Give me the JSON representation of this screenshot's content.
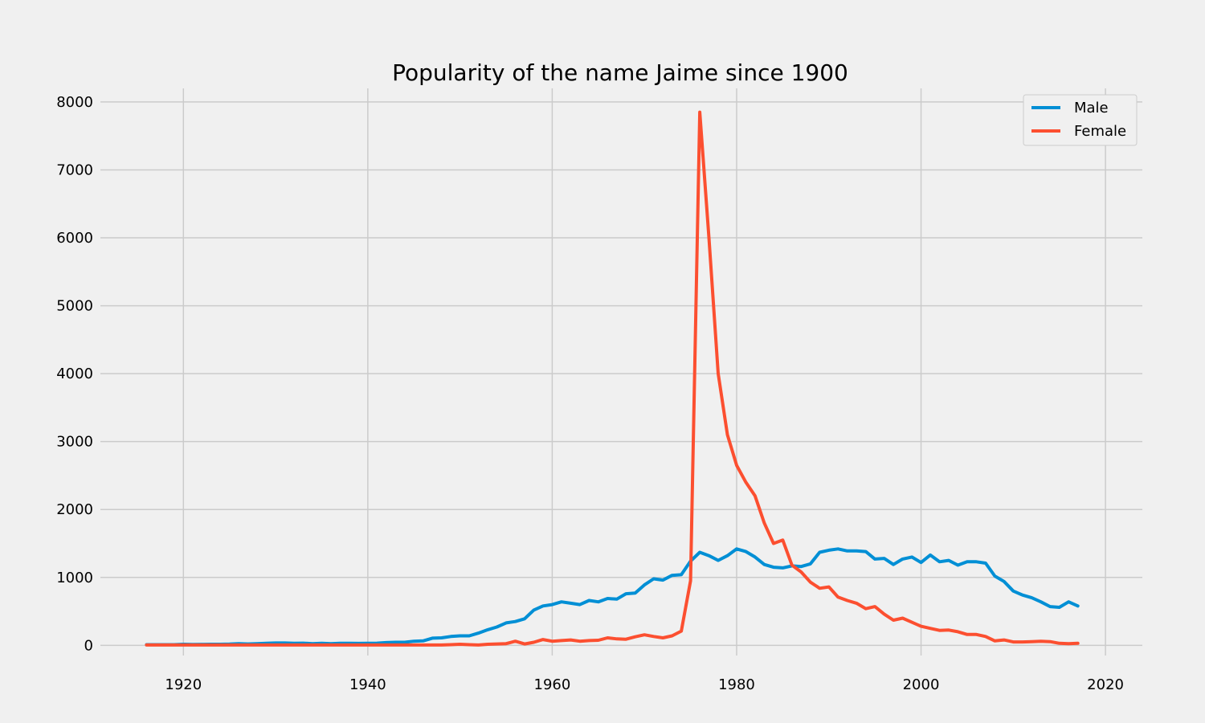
{
  "chart_data": {
    "type": "line",
    "title": "Popularity of the name Jaime since 1900",
    "xlabel": "",
    "ylabel": "",
    "xlim": [
      1911,
      2024
    ],
    "ylim": [
      -150,
      8200
    ],
    "xticks": [
      1920,
      1940,
      1960,
      1980,
      2000,
      2020
    ],
    "yticks": [
      0,
      1000,
      2000,
      3000,
      4000,
      5000,
      6000,
      7000,
      8000
    ],
    "grid": true,
    "legend_position": "top-right",
    "x": [
      1916,
      1917,
      1918,
      1919,
      1920,
      1921,
      1922,
      1923,
      1924,
      1925,
      1926,
      1927,
      1928,
      1929,
      1930,
      1931,
      1932,
      1933,
      1934,
      1935,
      1936,
      1937,
      1938,
      1939,
      1940,
      1941,
      1942,
      1943,
      1944,
      1945,
      1946,
      1947,
      1948,
      1949,
      1950,
      1951,
      1952,
      1953,
      1954,
      1955,
      1956,
      1957,
      1958,
      1959,
      1960,
      1961,
      1962,
      1963,
      1964,
      1965,
      1966,
      1967,
      1968,
      1969,
      1970,
      1971,
      1972,
      1973,
      1974,
      1975,
      1976,
      1977,
      1978,
      1979,
      1980,
      1981,
      1982,
      1983,
      1984,
      1985,
      1986,
      1987,
      1988,
      1989,
      1990,
      1991,
      1992,
      1993,
      1994,
      1995,
      1996,
      1997,
      1998,
      1999,
      2000,
      2001,
      2002,
      2003,
      2004,
      2005,
      2006,
      2007,
      2008,
      2009,
      2010,
      2011,
      2012,
      2013,
      2014,
      2015,
      2016,
      2017
    ],
    "series": [
      {
        "name": "Male",
        "color": "#008fd5",
        "values": [
          10,
          10,
          10,
          10,
          15,
          12,
          14,
          15,
          16,
          18,
          25,
          20,
          25,
          30,
          35,
          35,
          30,
          32,
          25,
          30,
          25,
          30,
          30,
          28,
          30,
          32,
          40,
          45,
          45,
          60,
          65,
          105,
          110,
          130,
          140,
          140,
          180,
          230,
          270,
          330,
          350,
          390,
          520,
          580,
          600,
          640,
          620,
          600,
          660,
          640,
          690,
          680,
          760,
          770,
          890,
          980,
          960,
          1030,
          1040,
          1240,
          1370,
          1320,
          1250,
          1320,
          1420,
          1380,
          1300,
          1190,
          1150,
          1140,
          1170,
          1160,
          1200,
          1370,
          1400,
          1420,
          1390,
          1390,
          1380,
          1270,
          1280,
          1190,
          1270,
          1300,
          1220,
          1330,
          1230,
          1250,
          1180,
          1230,
          1230,
          1210,
          1020,
          940,
          800,
          740,
          700,
          640,
          570,
          560,
          640,
          580
        ]
      },
      {
        "name": "Female",
        "color": "#fc4f30",
        "values": [
          5,
          5,
          5,
          5,
          5,
          5,
          5,
          5,
          5,
          5,
          5,
          5,
          5,
          5,
          5,
          5,
          5,
          5,
          5,
          5,
          5,
          5,
          5,
          5,
          5,
          5,
          5,
          5,
          5,
          5,
          5,
          5,
          5,
          10,
          15,
          10,
          5,
          15,
          20,
          25,
          60,
          20,
          45,
          85,
          60,
          70,
          80,
          60,
          70,
          75,
          110,
          95,
          90,
          125,
          155,
          130,
          110,
          140,
          210,
          950,
          7850,
          6000,
          4000,
          3100,
          2650,
          2400,
          2200,
          1800,
          1500,
          1550,
          1180,
          1080,
          930,
          840,
          860,
          710,
          660,
          620,
          540,
          570,
          460,
          370,
          400,
          340,
          280,
          250,
          220,
          225,
          200,
          160,
          160,
          130,
          65,
          80,
          50,
          50,
          55,
          60,
          55,
          30,
          25,
          30
        ]
      }
    ]
  }
}
